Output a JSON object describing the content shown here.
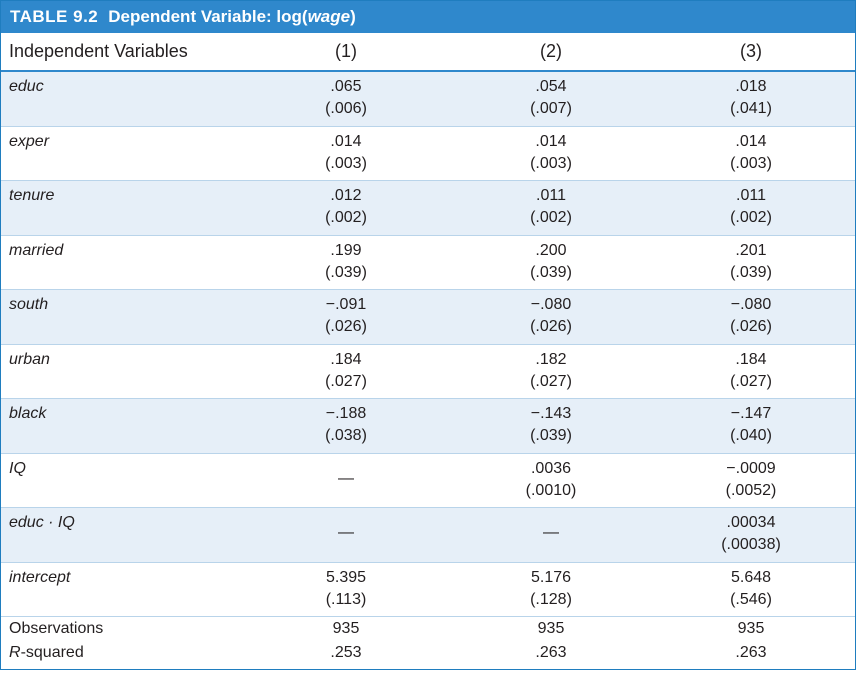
{
  "title": {
    "label": "TABLE 9.2",
    "text": "Dependent Variable: log(",
    "var": "wage",
    "close": ")"
  },
  "header": {
    "col0": "Independent Variables",
    "cols": [
      "(1)",
      "(2)",
      "(3)"
    ]
  },
  "rows": [
    {
      "name": "educ",
      "c1": [
        ".065",
        "(.006)"
      ],
      "c2": [
        ".054",
        "(.007)"
      ],
      "c3": [
        ".018",
        "(.041)"
      ]
    },
    {
      "name": "exper",
      "c1": [
        ".014",
        "(.003)"
      ],
      "c2": [
        ".014",
        "(.003)"
      ],
      "c3": [
        ".014",
        "(.003)"
      ]
    },
    {
      "name": "tenure",
      "c1": [
        ".012",
        "(.002)"
      ],
      "c2": [
        ".011",
        "(.002)"
      ],
      "c3": [
        ".011",
        "(.002)"
      ]
    },
    {
      "name": "married",
      "c1": [
        ".199",
        "(.039)"
      ],
      "c2": [
        ".200",
        "(.039)"
      ],
      "c3": [
        ".201",
        "(.039)"
      ]
    },
    {
      "name": "south",
      "c1": [
        "−.091",
        "(.026)"
      ],
      "c2": [
        "−.080",
        "(.026)"
      ],
      "c3": [
        "−.080",
        "(.026)"
      ]
    },
    {
      "name": "urban",
      "c1": [
        ".184",
        "(.027)"
      ],
      "c2": [
        ".182",
        "(.027)"
      ],
      "c3": [
        ".184",
        "(.027)"
      ]
    },
    {
      "name": "black",
      "c1": [
        "−.188",
        "(.038)"
      ],
      "c2": [
        "−.143",
        "(.039)"
      ],
      "c3": [
        "−.147",
        "(.040)"
      ]
    },
    {
      "name": "IQ",
      "c1": [
        "—",
        ""
      ],
      "c2": [
        ".0036",
        "(.0010)"
      ],
      "c3": [
        "−.0009",
        "(.0052)"
      ]
    },
    {
      "name": "educ · IQ",
      "c1": [
        "—",
        ""
      ],
      "c2": [
        "—",
        ""
      ],
      "c3": [
        ".00034",
        "(.00038)"
      ]
    },
    {
      "name": "intercept",
      "c1": [
        "5.395",
        "(.113)"
      ],
      "c2": [
        "5.176",
        "(.128)"
      ],
      "c3": [
        "5.648",
        "(.546)"
      ]
    }
  ],
  "stats": {
    "observations": {
      "label": "Observations",
      "c1": "935",
      "c2": "935",
      "c3": "935"
    },
    "rsquared": {
      "label_italic": "R",
      "label_rest": "-squared",
      "c1": ".253",
      "c2": ".263",
      "c3": ".263"
    }
  },
  "colors": {
    "title_bg": "#2f88cc",
    "shade": "#e6eff8",
    "rule": "#b9d4ea"
  }
}
